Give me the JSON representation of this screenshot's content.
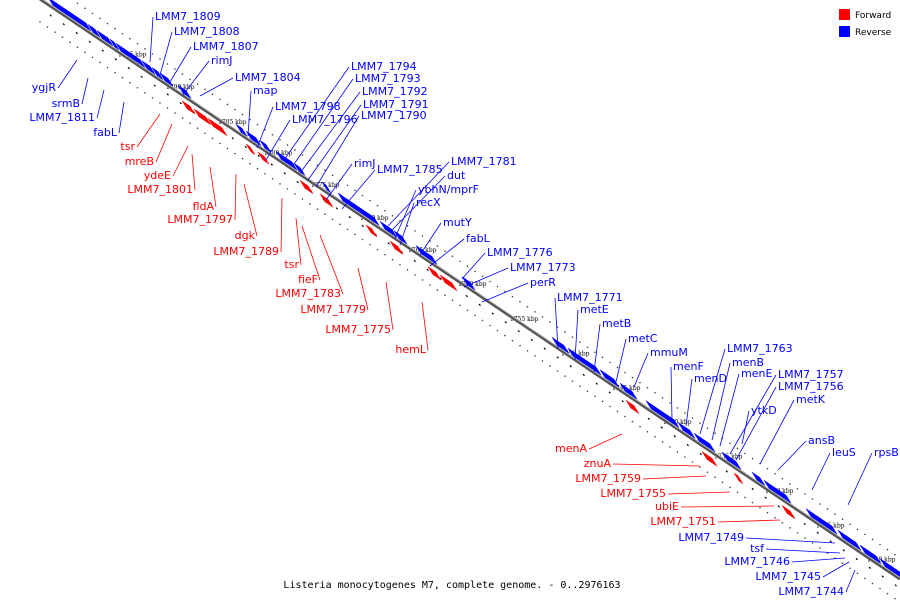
{
  "title": "Listeria monocytogenes M7, complete genome. - 0..2976163",
  "colors": {
    "forward": "#ff0000",
    "reverse": "#0000ff",
    "backbone": "#7f7f7f"
  },
  "legend": [
    {
      "label": "Forward",
      "color": "#ff0000"
    },
    {
      "label": "Reverse",
      "color": "#0000ff"
    }
  ],
  "ticks": [
    "1795 kbp",
    "1790 kbp",
    "1785 kbp",
    "1780 kbp",
    "1775 kbp",
    "1770 kbp",
    "1765 kbp",
    "1760 kbp",
    "1755 kbp",
    "1750 kbp",
    "1745 kbp",
    "1740 kbp",
    "1735 kbp",
    "1730 kbp",
    "1725 kbp",
    "1720 kbp"
  ],
  "genes": [
    {
      "name": "LMM7_1809",
      "strand": "reverse"
    },
    {
      "name": "LMM7_1808",
      "strand": "reverse"
    },
    {
      "name": "LMM7_1807",
      "strand": "reverse"
    },
    {
      "name": "rimJ",
      "strand": "reverse"
    },
    {
      "name": "LMM7_1804",
      "strand": "reverse"
    },
    {
      "name": "map",
      "strand": "reverse"
    },
    {
      "name": "LMM7_1798",
      "strand": "reverse"
    },
    {
      "name": "LMM7_1796",
      "strand": "reverse"
    },
    {
      "name": "LMM7_1794",
      "strand": "reverse"
    },
    {
      "name": "LMM7_1793",
      "strand": "reverse"
    },
    {
      "name": "LMM7_1792",
      "strand": "reverse"
    },
    {
      "name": "LMM7_1791",
      "strand": "reverse"
    },
    {
      "name": "LMM7_1790",
      "strand": "reverse"
    },
    {
      "name": "rimJ",
      "strand": "reverse"
    },
    {
      "name": "LMM7_1785",
      "strand": "reverse"
    },
    {
      "name": "LMM7_1781",
      "strand": "reverse"
    },
    {
      "name": "dut",
      "strand": "reverse"
    },
    {
      "name": "ybhN/mprF",
      "strand": "reverse"
    },
    {
      "name": "recX",
      "strand": "reverse"
    },
    {
      "name": "mutY",
      "strand": "reverse"
    },
    {
      "name": "fabL",
      "strand": "reverse"
    },
    {
      "name": "LMM7_1776",
      "strand": "reverse"
    },
    {
      "name": "LMM7_1773",
      "strand": "reverse"
    },
    {
      "name": "perR",
      "strand": "reverse"
    },
    {
      "name": "LMM7_1771",
      "strand": "reverse"
    },
    {
      "name": "metE",
      "strand": "reverse"
    },
    {
      "name": "metB",
      "strand": "reverse"
    },
    {
      "name": "metC",
      "strand": "reverse"
    },
    {
      "name": "mmuM",
      "strand": "reverse"
    },
    {
      "name": "menF",
      "strand": "reverse"
    },
    {
      "name": "menD",
      "strand": "reverse"
    },
    {
      "name": "LMM7_1763",
      "strand": "reverse"
    },
    {
      "name": "menB",
      "strand": "reverse"
    },
    {
      "name": "menE",
      "strand": "reverse"
    },
    {
      "name": "LMM7_1757",
      "strand": "reverse"
    },
    {
      "name": "LMM7_1756",
      "strand": "reverse"
    },
    {
      "name": "ytkD",
      "strand": "reverse"
    },
    {
      "name": "metK",
      "strand": "reverse"
    },
    {
      "name": "ansB",
      "strand": "reverse"
    },
    {
      "name": "leuS",
      "strand": "reverse"
    },
    {
      "name": "rpsB",
      "strand": "reverse"
    },
    {
      "name": "ygjR",
      "strand": "reverse"
    },
    {
      "name": "srmB",
      "strand": "reverse"
    },
    {
      "name": "LMM7_1811",
      "strand": "reverse"
    },
    {
      "name": "fabL",
      "strand": "reverse"
    },
    {
      "name": "tsr",
      "strand": "forward"
    },
    {
      "name": "mreB",
      "strand": "forward"
    },
    {
      "name": "ydeE",
      "strand": "forward"
    },
    {
      "name": "LMM7_1801",
      "strand": "forward"
    },
    {
      "name": "fldA",
      "strand": "forward"
    },
    {
      "name": "LMM7_1797",
      "strand": "forward"
    },
    {
      "name": "dgk",
      "strand": "forward"
    },
    {
      "name": "LMM7_1789",
      "strand": "forward"
    },
    {
      "name": "tsr",
      "strand": "forward"
    },
    {
      "name": "fieF",
      "strand": "forward"
    },
    {
      "name": "LMM7_1783",
      "strand": "forward"
    },
    {
      "name": "LMM7_1779",
      "strand": "forward"
    },
    {
      "name": "LMM7_1775",
      "strand": "forward"
    },
    {
      "name": "hemL",
      "strand": "forward"
    },
    {
      "name": "menA",
      "strand": "forward"
    },
    {
      "name": "znuA",
      "strand": "forward"
    },
    {
      "name": "LMM7_1759",
      "strand": "forward"
    },
    {
      "name": "LMM7_1755",
      "strand": "forward"
    },
    {
      "name": "ubiE",
      "strand": "forward"
    },
    {
      "name": "LMM7_1751",
      "strand": "forward"
    },
    {
      "name": "LMM7_1749",
      "strand": "reverse"
    },
    {
      "name": "tsf",
      "strand": "reverse"
    },
    {
      "name": "LMM7_1746",
      "strand": "reverse"
    },
    {
      "name": "LMM7_1745",
      "strand": "reverse"
    },
    {
      "name": "LMM7_1744",
      "strand": "reverse"
    }
  ]
}
